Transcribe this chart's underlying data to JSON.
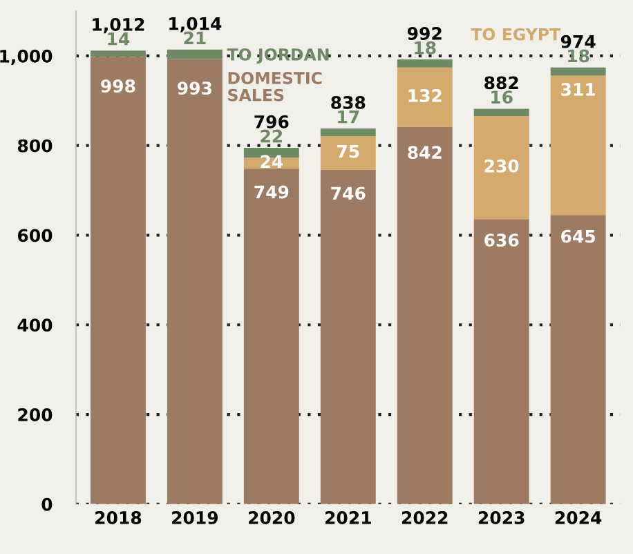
{
  "chart_data": {
    "type": "bar",
    "stacked": true,
    "categories": [
      "2018",
      "2019",
      "2020",
      "2021",
      "2022",
      "2023",
      "2024"
    ],
    "series": [
      {
        "name": "DOMESTIC SALES",
        "color": "#9c7b62",
        "values": [
          998,
          993,
          749,
          746,
          842,
          636,
          645
        ]
      },
      {
        "name": "TO EGYPT",
        "color": "#d4a96c",
        "values": [
          null,
          null,
          24,
          75,
          132,
          230,
          311
        ]
      },
      {
        "name": "TO JORDAN",
        "color": "#6e8a64",
        "values": [
          14,
          21,
          22,
          17,
          18,
          16,
          18
        ]
      }
    ],
    "totals": [
      "1,012",
      "1,014",
      "796",
      "838",
      "992",
      "882",
      "974"
    ],
    "data_labels": true,
    "ylim": [
      0,
      1100
    ],
    "yticks": [
      0,
      200,
      400,
      600,
      800,
      {
        "value": 1000,
        "label": "1,000"
      }
    ],
    "grid": "y",
    "legend": false
  }
}
